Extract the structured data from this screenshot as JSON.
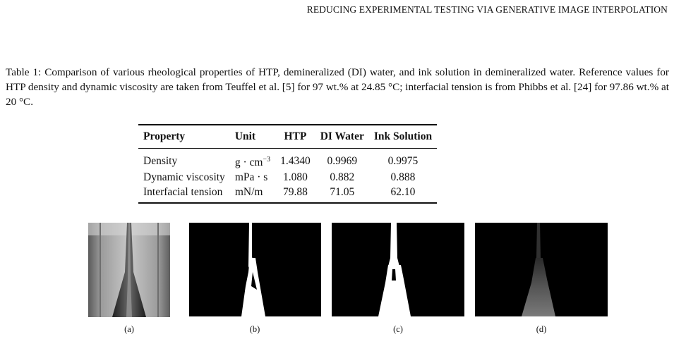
{
  "header": {
    "running_title": "REDUCING EXPERIMENTAL TESTING VIA GENERATIVE IMAGE INTERPOLATION"
  },
  "caption": {
    "text": "Table 1: Comparison of various rheological properties of HTP, demineralized (DI) water, and ink solution in demineralized water. Reference values for HTP density and dynamic viscosity are taken from Teuffel et al. [5] for 97 wt.% at 24.85 °C; interfacial tension is from Phibbs et al. [24] for 97.86 wt.% at 20 °C."
  },
  "table": {
    "headers": [
      "Property",
      "Unit",
      "HTP",
      "DI Water",
      "Ink Solution"
    ],
    "rows": [
      {
        "property": "Density",
        "unit_base": "g · cm",
        "unit_sup": "−3",
        "htp": "1.4340",
        "di": "0.9969",
        "ink": "0.9975"
      },
      {
        "property": "Dynamic viscosity",
        "unit_base": "mPa · s",
        "unit_sup": "",
        "htp": "1.080",
        "di": "0.882",
        "ink": "0.888"
      },
      {
        "property": "Interfacial tension",
        "unit_base": "mN/m",
        "unit_sup": "",
        "htp": "79.88",
        "di": "71.05",
        "ink": "62.10"
      }
    ]
  },
  "figures": {
    "labels": [
      "(a)",
      "(b)",
      "(c)",
      "(d)"
    ]
  }
}
